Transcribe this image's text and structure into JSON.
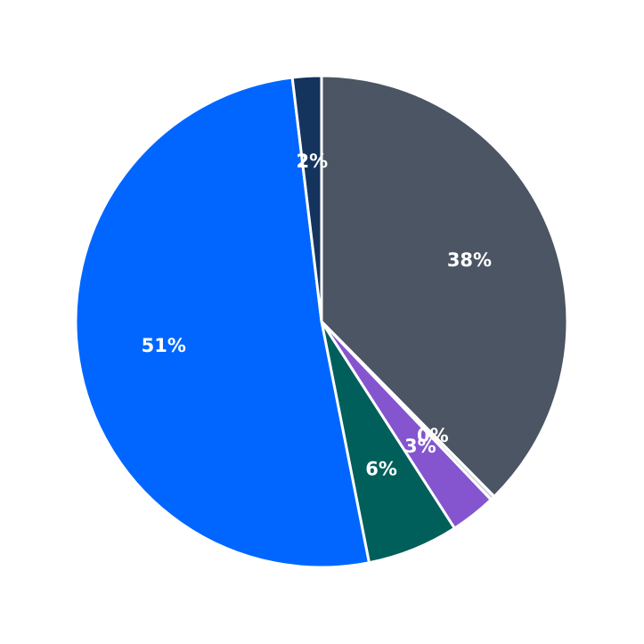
{
  "chart_data": {
    "type": "pie",
    "values": [
      37.6,
      0.3,
      3.0,
      6.0,
      51.2,
      1.9
    ],
    "value_labels": [
      "38%",
      "0%",
      "3%",
      "6%",
      "51%",
      "2%"
    ],
    "colors": [
      "#4b5563",
      "#d1d5db",
      "#8455cf",
      "#005f5a",
      "#0066ff",
      "#14345e"
    ]
  }
}
